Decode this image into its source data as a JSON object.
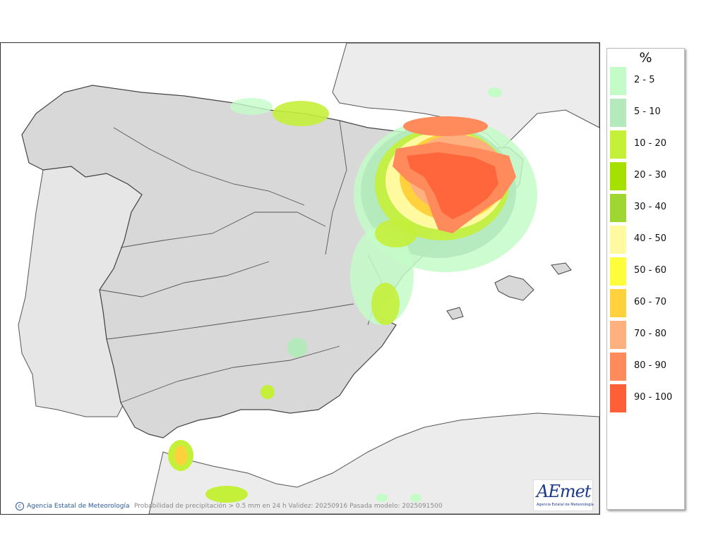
{
  "map": {
    "unit_label": "%",
    "legend": [
      {
        "label": "2 - 5",
        "color": "#c4fcc8"
      },
      {
        "label": "5 - 10",
        "color": "#b3e9bb"
      },
      {
        "label": "10 - 20",
        "color": "#c4f03a"
      },
      {
        "label": "20 - 30",
        "color": "#a6e000"
      },
      {
        "label": "30 - 40",
        "color": "#9fd631"
      },
      {
        "label": "40 - 50",
        "color": "#fffaa0"
      },
      {
        "label": "50 - 60",
        "color": "#fefd3c"
      },
      {
        "label": "60 - 70",
        "color": "#ffd23d"
      },
      {
        "label": "70 - 80",
        "color": "#ffb07f"
      },
      {
        "label": "80 - 90",
        "color": "#ff8a5b"
      },
      {
        "label": "90 - 100",
        "color": "#ff5f37"
      }
    ],
    "agency_credit": "Agencia Estatal de Meteorología",
    "caption": "Probabilidad de precipitación > 0.5 mm en 24 h Validez: 20250916 Pasada modelo: 2025091500",
    "logo": {
      "wordmark": "AEmet",
      "subtitle": "Agencia Estatal de Meteorología"
    }
  }
}
